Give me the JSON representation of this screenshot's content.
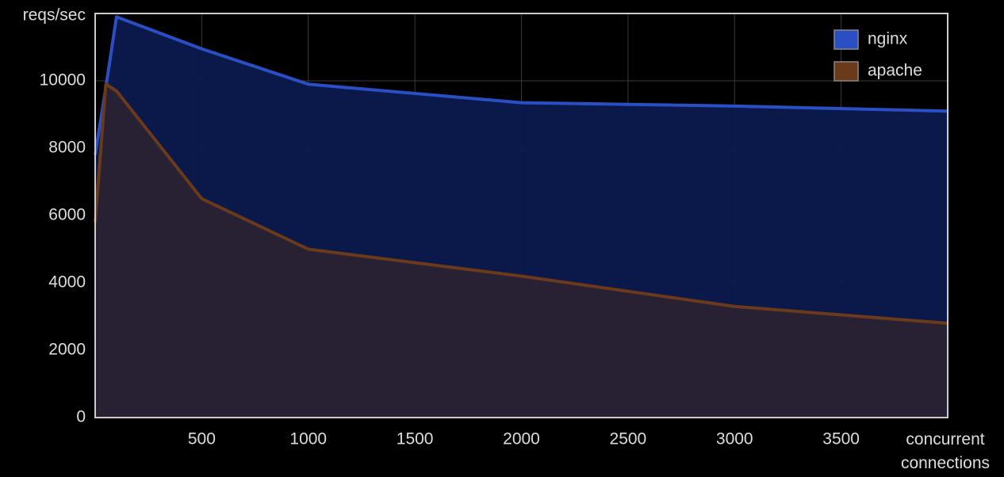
{
  "chart_data": {
    "type": "area",
    "y_label": "reqs/sec",
    "x_label": "concurrent connections",
    "x": [
      0,
      50,
      100,
      500,
      1000,
      2000,
      3000,
      4000
    ],
    "series": [
      {
        "name": "nginx",
        "color": "#2a4fc4",
        "fill": "#0b1a4d",
        "values": [
          7800,
          9800,
          11900,
          10950,
          9900,
          9350,
          9250,
          9100
        ]
      },
      {
        "name": "apache",
        "color": "#6b3a1a",
        "fill": "#2a2233",
        "values": [
          5800,
          9900,
          9700,
          6500,
          5000,
          4200,
          3300,
          2800
        ]
      }
    ],
    "xlim": [
      0,
      4000
    ],
    "xticks": [
      500,
      1000,
      1500,
      2000,
      2500,
      3000,
      3500
    ],
    "ylim": [
      0,
      12000
    ],
    "yticks": [
      0,
      2000,
      4000,
      6000,
      8000,
      10000
    ],
    "grid": true,
    "legend": "upper right"
  }
}
